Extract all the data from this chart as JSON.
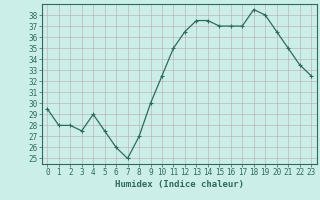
{
  "x": [
    0,
    1,
    2,
    3,
    4,
    5,
    6,
    7,
    8,
    9,
    10,
    11,
    12,
    13,
    14,
    15,
    16,
    17,
    18,
    19,
    20,
    21,
    22,
    23
  ],
  "y": [
    29.5,
    28.0,
    28.0,
    27.5,
    29.0,
    27.5,
    26.0,
    25.0,
    27.0,
    30.0,
    32.5,
    35.0,
    36.5,
    37.5,
    37.5,
    37.0,
    37.0,
    37.0,
    38.5,
    38.0,
    36.5,
    35.0,
    33.5,
    32.5
  ],
  "line_color": "#2e6b5e",
  "marker": "+",
  "marker_size": 3,
  "linewidth": 0.9,
  "bg_color": "#cceee8",
  "grid_color": "#b8aaaa",
  "xlabel": "Humidex (Indice chaleur)",
  "xlim": [
    -0.5,
    23.5
  ],
  "ylim": [
    24.5,
    39
  ],
  "yticks": [
    25,
    26,
    27,
    28,
    29,
    30,
    31,
    32,
    33,
    34,
    35,
    36,
    37,
    38
  ],
  "xticks": [
    0,
    1,
    2,
    3,
    4,
    5,
    6,
    7,
    8,
    9,
    10,
    11,
    12,
    13,
    14,
    15,
    16,
    17,
    18,
    19,
    20,
    21,
    22,
    23
  ],
  "xlabel_fontsize": 6.5,
  "tick_fontsize": 5.5,
  "tick_color": "#2e6b5e",
  "axis_color": "#2e6b5e",
  "spine_color": "#2e6b5e"
}
